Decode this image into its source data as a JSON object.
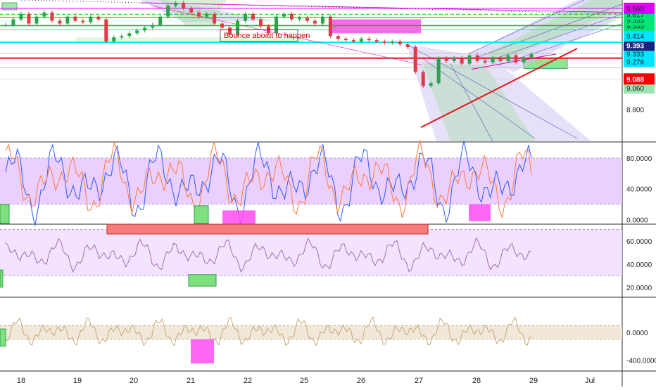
{
  "chart_data": {
    "type": "line",
    "title": "",
    "annotation": "Bounce aboiut to happen",
    "x_ticks": [
      "18",
      "19",
      "20",
      "21",
      "22",
      "25",
      "26",
      "27",
      "28",
      "29",
      "Jul"
    ],
    "main": {
      "ylim": [
        8.7,
        9.72
      ],
      "tick_labels": [
        "8.800",
        "9.060",
        "9.088",
        "9.276",
        "9.333",
        "9.393",
        "9.414",
        "9.535",
        "9.555",
        "9.617",
        "9.660"
      ],
      "price_series": [
        9.54,
        9.58,
        9.62,
        9.55,
        9.6,
        9.63,
        9.57,
        9.55,
        9.6,
        9.57,
        9.56,
        9.6,
        9.58,
        9.42,
        9.45,
        9.46,
        9.48,
        9.5,
        9.52,
        9.54,
        9.6,
        9.68,
        9.7,
        9.66,
        9.63,
        9.6,
        9.62,
        9.55,
        9.52,
        9.47,
        9.57,
        9.62,
        9.58,
        9.53,
        9.48,
        9.6,
        9.62,
        9.58,
        9.59,
        9.57,
        9.55,
        9.6,
        9.46,
        9.44,
        9.43,
        9.42,
        9.44,
        9.43,
        9.42,
        9.41,
        9.42,
        9.4,
        9.38,
        9.2,
        9.1,
        9.12,
        9.3,
        9.28,
        9.3,
        9.26,
        9.32,
        9.28,
        9.27,
        9.3,
        9.28,
        9.32,
        9.27,
        9.3,
        9.33
      ]
    },
    "osc1": {
      "ylim": [
        -0.05,
        1.0
      ],
      "tick_labels": [
        "80.0000",
        "40.0000",
        "0.0000"
      ]
    },
    "osc2": {
      "ylim": [
        0.12,
        0.74
      ],
      "tick_labels": [
        "60.0000",
        "40.0000",
        "20.0000"
      ]
    },
    "osc3": {
      "ylim": [
        -0.55,
        0.5
      ],
      "tick_labels": [
        "0.0000",
        "-400.0000"
      ]
    },
    "colors": {
      "up": "#2fa14e",
      "down": "#e13a45",
      "trendline": "#e0161e",
      "cyan_line": "#00e5ff",
      "green_line": "#00c800",
      "label_green": "#00e676",
      "label_cyan": "#00e5ff",
      "label_navy": "#1a237e",
      "label_red": "#f80000",
      "label_magenta": "#e000ff",
      "label_pale_green": "#9be3b0",
      "label_dark": "#212121"
    }
  }
}
